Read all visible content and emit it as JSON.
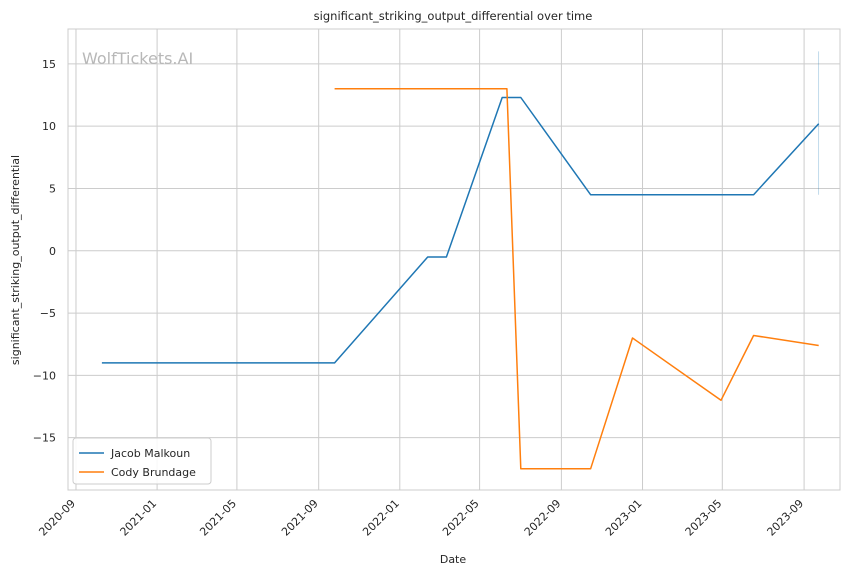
{
  "chart_data": {
    "type": "line",
    "title": "significant_striking_output_differential over time",
    "xlabel": "Date",
    "ylabel": "significant_striking_output_differential",
    "watermark": "WolfTickets.AI",
    "x_ticks": [
      "2020-09",
      "2021-01",
      "2021-05",
      "2021-09",
      "2022-01",
      "2022-05",
      "2022-09",
      "2023-01",
      "2023-05",
      "2023-09"
    ],
    "y_ticks": [
      15,
      10,
      5,
      0,
      -5,
      -10,
      -15
    ],
    "y_tick_labels": [
      "15",
      "10",
      "5",
      "0",
      "−5",
      "−10",
      "−15"
    ],
    "xlim": [
      "2020-08-20",
      "2023-10-25"
    ],
    "ylim": [
      -19.2,
      17.8
    ],
    "grid": true,
    "legend_position": "lower-left",
    "series": [
      {
        "name": "Jacob Malkoun",
        "color": "#1f77b4",
        "points": [
          [
            "2020-10-10",
            -9.0
          ],
          [
            "2021-09-25",
            -9.0
          ],
          [
            "2022-02-12",
            -0.5
          ],
          [
            "2022-03-12",
            -0.5
          ],
          [
            "2022-06-04",
            12.3
          ],
          [
            "2022-07-02",
            12.3
          ],
          [
            "2022-10-15",
            4.5
          ],
          [
            "2023-06-17",
            4.5
          ],
          [
            "2023-09-23",
            10.2
          ]
        ]
      },
      {
        "name": "Cody Brundage",
        "color": "#ff7f0e",
        "points": [
          [
            "2021-09-25",
            13.0
          ],
          [
            "2022-06-11",
            13.0
          ],
          [
            "2022-07-02",
            -17.5
          ],
          [
            "2022-10-15",
            -17.5
          ],
          [
            "2022-12-17",
            -7.0
          ],
          [
            "2023-04-29",
            -12.0
          ],
          [
            "2023-06-17",
            -6.8
          ],
          [
            "2023-09-23",
            -7.6
          ]
        ]
      }
    ],
    "annotations": [
      {
        "type": "vertical-line",
        "x": "2023-09-23",
        "y_range": [
          4.5,
          16.0
        ],
        "color": "#1f77b4"
      }
    ]
  }
}
